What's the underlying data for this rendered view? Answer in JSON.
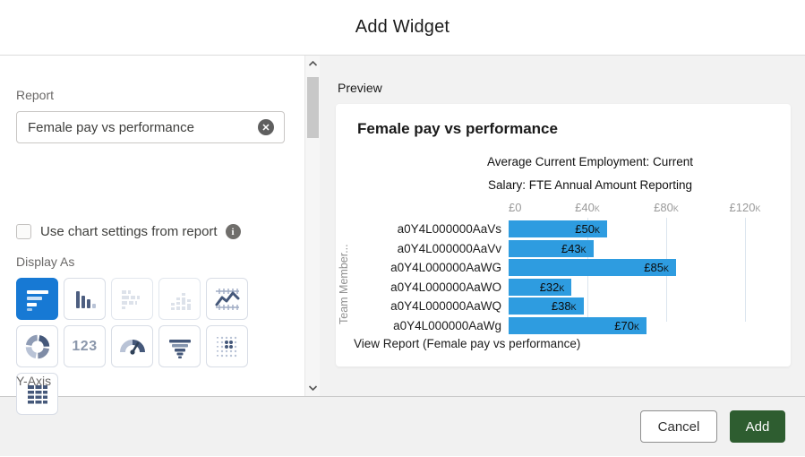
{
  "dialog": {
    "title": "Add Widget"
  },
  "left_panel": {
    "report_label": "Report",
    "report_value": "Female pay vs performance",
    "clear_icon_glyph": "✕",
    "checkbox_label": "Use chart settings from report",
    "info_icon_glyph": "i",
    "display_as_label": "Display As",
    "chart_types": [
      {
        "name": "horizontal-bar",
        "selected": true
      },
      {
        "name": "vertical-bar"
      },
      {
        "name": "stacked-horizontal-bar",
        "disabled": true
      },
      {
        "name": "stacked-vertical-bar",
        "disabled": true
      },
      {
        "name": "line"
      },
      {
        "name": "donut"
      },
      {
        "name": "metric",
        "label": "123"
      },
      {
        "name": "gauge"
      },
      {
        "name": "funnel"
      },
      {
        "name": "scatter"
      },
      {
        "name": "table"
      }
    ],
    "y_axis_section_label": "Y-Axis"
  },
  "preview": {
    "label": "Preview",
    "view_report_text": "View Report (Female pay vs performance)"
  },
  "chart_data": {
    "type": "bar",
    "orientation": "horizontal",
    "title": "Female pay vs performance",
    "subtitle_lines": [
      "Average Current Employment: Current",
      "Salary: FTE Annual Amount Reporting"
    ],
    "categories": [
      "a0Y4L000000AaVs",
      "a0Y4L000000AaVv",
      "a0Y4L000000AaWG",
      "a0Y4L000000AaWO",
      "a0Y4L000000AaWQ",
      "a0Y4L000000AaWg"
    ],
    "values_k": [
      50,
      43,
      85,
      32,
      38,
      70
    ],
    "value_labels": [
      "£50k",
      "£43k",
      "£85k",
      "£32k",
      "£38k",
      "£70k"
    ],
    "x_ticks": [
      "£0",
      "£40k",
      "£80k",
      "£120k"
    ],
    "x_tick_values_k": [
      0,
      40,
      80,
      120
    ],
    "xlim_k": [
      0,
      140
    ],
    "ylabel": "Team Member...",
    "bar_color": "#2e9ce0",
    "grid": true,
    "legend": "none",
    "clipped_last_row": true
  },
  "footer": {
    "cancel_label": "Cancel",
    "add_label": "Add",
    "add_color": "#2e5d30"
  }
}
